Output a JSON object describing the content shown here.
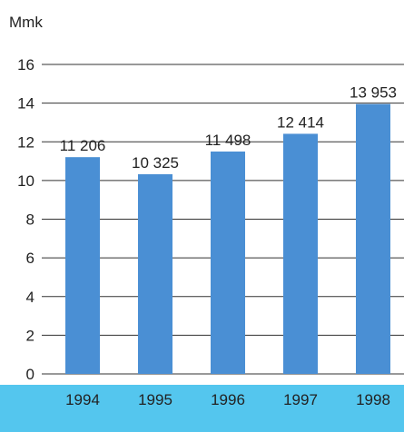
{
  "chart_data": {
    "type": "bar",
    "title": "",
    "unit_label": "Mmk",
    "xlabel": "",
    "ylabel": "",
    "categories": [
      "1994",
      "1995",
      "1996",
      "1997",
      "1998"
    ],
    "values": [
      11.206,
      10.325,
      11.498,
      12.414,
      13.953
    ],
    "data_labels": [
      "11 206",
      "10 325",
      "11 498",
      "12 414",
      "13 953"
    ],
    "ylim": [
      0,
      16
    ],
    "yticks": [
      0,
      2,
      4,
      6,
      8,
      10,
      12,
      14,
      16
    ],
    "grid": true,
    "legend": "none",
    "colors": {
      "bar": "#4a8fd4",
      "axis_band": "#54c6ee",
      "grid": "#333333",
      "text": "#222222"
    }
  }
}
